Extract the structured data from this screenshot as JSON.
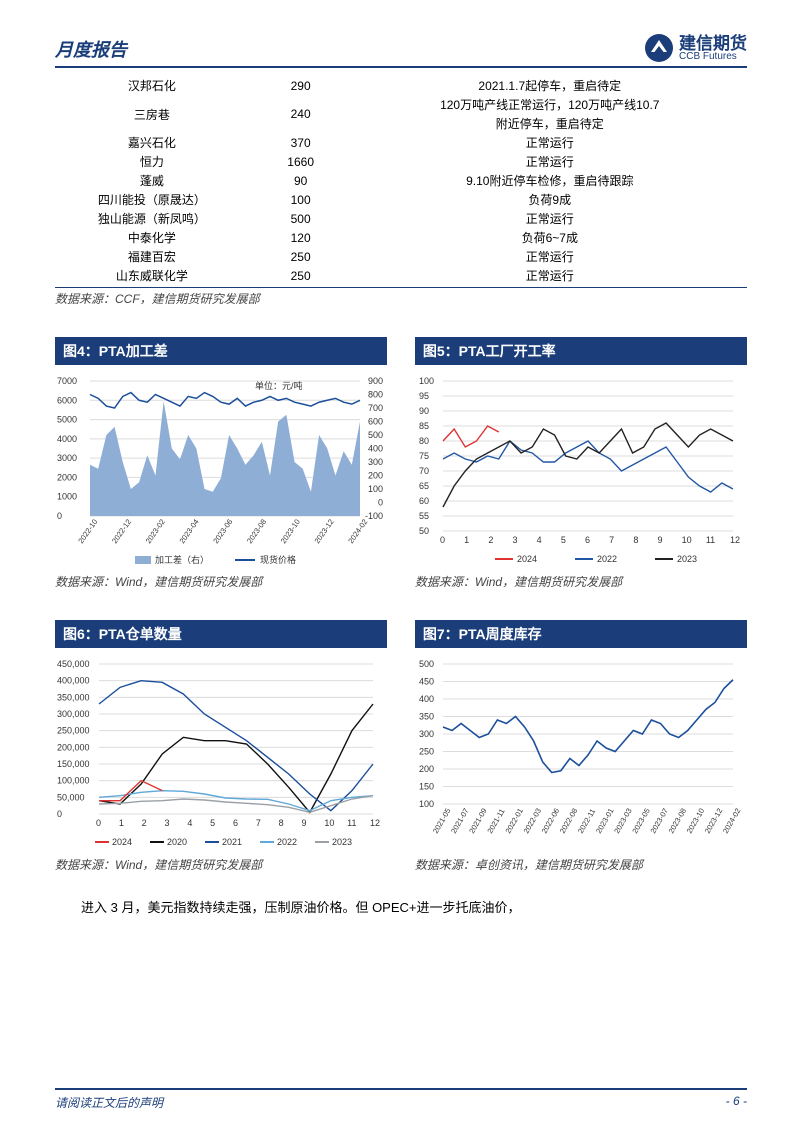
{
  "header": {
    "title": "月度报告",
    "logo_cn": "建信期货",
    "logo_en": "CCB Futures"
  },
  "table": {
    "rows": [
      {
        "name": "汉邦石化",
        "cap": "290",
        "status": "2021.1.7起停车，重启待定"
      },
      {
        "name": "三房巷",
        "cap": "240",
        "status": "120万吨产线正常运行，120万吨产线10.7附近停车，重启待定"
      },
      {
        "name": "嘉兴石化",
        "cap": "370",
        "status": "正常运行"
      },
      {
        "name": "恒力",
        "cap": "1660",
        "status": "正常运行"
      },
      {
        "name": "蓬威",
        "cap": "90",
        "status": "9.10附近停车检修，重启待跟踪"
      },
      {
        "name": "四川能投（原晟达）",
        "cap": "100",
        "status": "负荷9成"
      },
      {
        "name": "独山能源（新凤鸣）",
        "cap": "500",
        "status": "正常运行"
      },
      {
        "name": "中泰化学",
        "cap": "120",
        "status": "负荷6~7成"
      },
      {
        "name": "福建百宏",
        "cap": "250",
        "status": "正常运行"
      },
      {
        "name": "山东威联化学",
        "cap": "250",
        "status": "正常运行"
      }
    ],
    "source": "数据来源：CCF，建信期货研究发展部"
  },
  "chart4": {
    "title": "图4：PTA加工差",
    "unit_label": "单位：元/吨",
    "left_ticks": [
      "7000",
      "6000",
      "5000",
      "4000",
      "3000",
      "2000",
      "1000",
      "0"
    ],
    "right_ticks": [
      "900",
      "800",
      "700",
      "600",
      "500",
      "400",
      "300",
      "200",
      "100",
      "0",
      "-100"
    ],
    "x_labels": [
      "2022-10",
      "2022-12",
      "2023-02",
      "2023-04",
      "2023-06",
      "2023-08",
      "2023-10",
      "2023-12",
      "2024-02"
    ],
    "legend": [
      "加工差（右）",
      "现货价格"
    ],
    "colors": {
      "area": "#8faed6",
      "line": "#1b4e9b",
      "grid": "#dcdcdc"
    },
    "line_vals": [
      6300,
      6100,
      5700,
      5600,
      6200,
      6400,
      6000,
      5900,
      6300,
      6100,
      5900,
      5700,
      6200,
      6100,
      6400,
      6200,
      5900,
      5800,
      6100,
      5700,
      5900,
      6000,
      6200,
      6000,
      6100,
      5900,
      5800,
      5700,
      5900,
      6000,
      6100,
      5900,
      5800,
      6000
    ],
    "area_vals": [
      280,
      250,
      500,
      560,
      300,
      100,
      150,
      350,
      200,
      750,
      400,
      320,
      500,
      400,
      100,
      80,
      180,
      500,
      400,
      280,
      350,
      450,
      200,
      600,
      650,
      300,
      250,
      80,
      500,
      400,
      200,
      380,
      280,
      600
    ],
    "source": "数据来源：Wind，建信期货研究发展部"
  },
  "chart5": {
    "title": "图5：PTA工厂开工率",
    "y_ticks": [
      "100",
      "95",
      "90",
      "85",
      "80",
      "75",
      "70",
      "65",
      "60",
      "55",
      "50"
    ],
    "x_labels": [
      "0",
      "1",
      "2",
      "3",
      "4",
      "5",
      "6",
      "7",
      "8",
      "9",
      "10",
      "11",
      "12"
    ],
    "legend": [
      "2024",
      "2022",
      "2023"
    ],
    "colors": {
      "2024": "#e03131",
      "2022": "#2257a5",
      "2023": "#222222",
      "grid": "#dcdcdc"
    },
    "series": {
      "2022": [
        74,
        76,
        74,
        73,
        75,
        74,
        80,
        77,
        76,
        73,
        73,
        76,
        78,
        80,
        76,
        74,
        70,
        72,
        74,
        76,
        78,
        73,
        68,
        65,
        63,
        66,
        64
      ],
      "2023": [
        58,
        65,
        70,
        74,
        76,
        78,
        80,
        76,
        78,
        84,
        82,
        75,
        74,
        78,
        76,
        80,
        84,
        76,
        78,
        84,
        86,
        82,
        78,
        82,
        84,
        82,
        80
      ],
      "2024": [
        80,
        84,
        78,
        80,
        85,
        83
      ]
    },
    "source": "数据来源：Wind，建信期货研究发展部"
  },
  "chart6": {
    "title": "图6：PTA仓单数量",
    "y_ticks": [
      "450,000",
      "400,000",
      "350,000",
      "300,000",
      "250,000",
      "200,000",
      "150,000",
      "100,000",
      "50,000",
      "0"
    ],
    "x_labels": [
      "0",
      "1",
      "2",
      "3",
      "4",
      "5",
      "6",
      "7",
      "8",
      "9",
      "10",
      "11",
      "12"
    ],
    "legend": [
      "2024",
      "2020",
      "2021",
      "2022",
      "2023"
    ],
    "colors": {
      "2024": "#e03131",
      "2020": "#111111",
      "2021": "#1b4e9b",
      "2022": "#5fa8d8",
      "2023": "#9aa0a6",
      "grid": "#dcdcdc"
    },
    "series": {
      "2020": [
        40000,
        30000,
        90000,
        180000,
        230000,
        220000,
        220000,
        210000,
        150000,
        80000,
        5000,
        120000,
        250000,
        330000
      ],
      "2021": [
        330000,
        380000,
        400000,
        395000,
        360000,
        300000,
        260000,
        220000,
        170000,
        120000,
        60000,
        10000,
        70000,
        150000
      ],
      "2022": [
        50000,
        55000,
        65000,
        70000,
        68000,
        60000,
        48000,
        45000,
        44000,
        30000,
        10000,
        40000,
        50000,
        55000
      ],
      "2023": [
        30000,
        32000,
        38000,
        40000,
        45000,
        42000,
        36000,
        32000,
        28000,
        20000,
        5000,
        25000,
        45000,
        55000
      ],
      "2024": [
        40000,
        40000,
        100000,
        70000
      ]
    },
    "source": "数据来源：Wind，建信期货研究发展部"
  },
  "chart7": {
    "title": "图7：PTA周度库存",
    "y_ticks": [
      "500",
      "450",
      "400",
      "350",
      "300",
      "250",
      "200",
      "150",
      "100"
    ],
    "x_labels": [
      "2021-05",
      "2021-07",
      "2021-09",
      "2021-11",
      "2022-01",
      "2022-03",
      "2022-06",
      "2022-08",
      "2022-11",
      "2023-01",
      "2023-03",
      "2023-05",
      "2023-07",
      "2023-08",
      "2023-10",
      "2023-12",
      "2024-02"
    ],
    "colors": {
      "line": "#1b4e9b",
      "grid": "#dcdcdc"
    },
    "vals": [
      320,
      310,
      330,
      310,
      290,
      300,
      340,
      330,
      350,
      320,
      280,
      220,
      190,
      195,
      230,
      210,
      240,
      280,
      260,
      250,
      280,
      310,
      300,
      340,
      330,
      300,
      290,
      310,
      340,
      370,
      390,
      430,
      455
    ],
    "source": "数据来源：卓创资讯，建信期货研究发展部"
  },
  "body_text": "进入 3 月，美元指数持续走强，压制原油价格。但 OPEC+进一步托底油价，",
  "footer": {
    "left": "请阅读正文后的声明",
    "right": "- 6 -"
  }
}
